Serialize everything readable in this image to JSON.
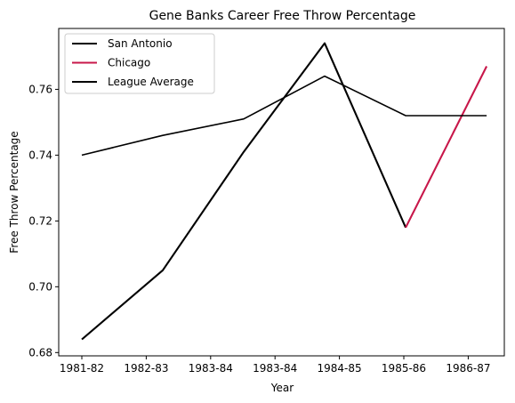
{
  "chart_data": {
    "type": "line",
    "title": "Gene Banks Career Free Throw Percentage",
    "xlabel": "Year",
    "ylabel": "Free Throw Percentage",
    "categories": [
      "1981-82",
      "1982-83",
      "1983-84",
      "1983-84",
      "1984-85",
      "1985-86",
      "1986-87"
    ],
    "ylim": [
      0.679,
      0.7785
    ],
    "yticks": [
      0.68,
      0.7,
      0.72,
      0.74,
      0.76
    ],
    "ytick_labels": [
      "0.68",
      "0.70",
      "0.72",
      "0.74",
      "0.76"
    ],
    "grid": false,
    "legend_position": "top-left",
    "series": [
      {
        "name": "San Antonio",
        "color": "#000000",
        "points": [
          {
            "x": 0.0,
            "y": 0.684
          },
          {
            "x": 1.257,
            "y": 0.705
          },
          {
            "x": 2.514,
            "y": 0.741
          },
          {
            "x": 3.771,
            "y": 0.774
          },
          {
            "x": 5.029,
            "y": 0.718
          }
        ]
      },
      {
        "name": "Chicago",
        "color": "#c8174a",
        "points": [
          {
            "x": 5.029,
            "y": 0.718
          },
          {
            "x": 6.286,
            "y": 0.767
          }
        ]
      },
      {
        "name": "League Average",
        "color": "#000000",
        "points": [
          {
            "x": 0.0,
            "y": 0.74
          },
          {
            "x": 1.257,
            "y": 0.746
          },
          {
            "x": 2.514,
            "y": 0.751
          },
          {
            "x": 3.771,
            "y": 0.764
          },
          {
            "x": 5.029,
            "y": 0.752
          },
          {
            "x": 6.286,
            "y": 0.752
          }
        ]
      }
    ]
  }
}
